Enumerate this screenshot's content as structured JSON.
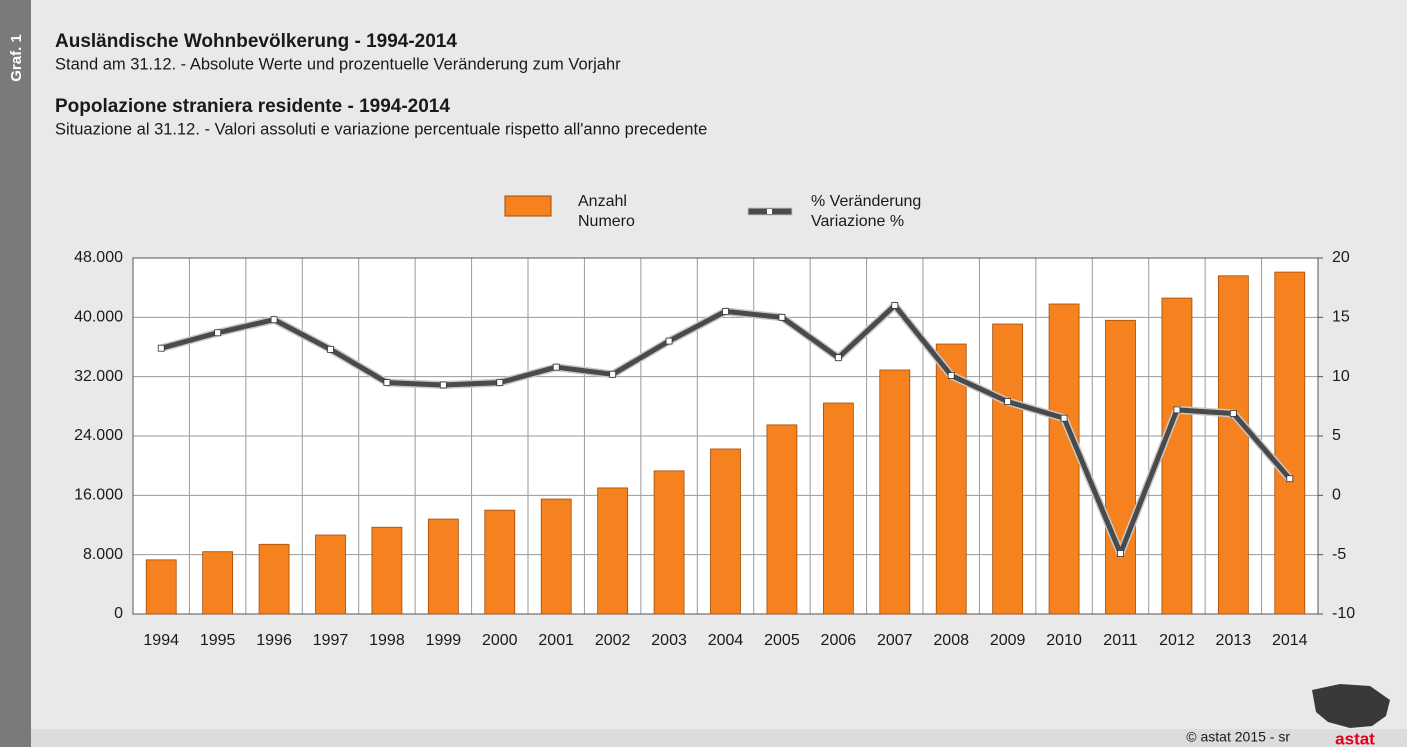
{
  "chart_data": {
    "type": "bar-line",
    "side_label": "Graf. 1",
    "title": "Ausländische Wohnbevölkerung - 1994-2014",
    "subtitle": "Stand am 31.12. - Absolute Werte und prozentuelle Veränderung zum Vorjahr",
    "title2": "Popolazione straniera residente - 1994-2014",
    "subtitle2": "Situazione al 31.12. - Valori assoluti e variazione percentuale rispetto all'anno precedente",
    "categories": [
      "1994",
      "1995",
      "1996",
      "1997",
      "1998",
      "1999",
      "2000",
      "2001",
      "2002",
      "2003",
      "2004",
      "2005",
      "2006",
      "2007",
      "2008",
      "2009",
      "2010",
      "2011",
      "2012",
      "2013",
      "2014"
    ],
    "series": [
      {
        "name": [
          "Anzahl",
          "Numero"
        ],
        "type": "bar",
        "color": "#f5821f",
        "values": [
          7300,
          8400,
          9400,
          10650,
          11700,
          12800,
          14000,
          15500,
          17000,
          19300,
          22250,
          25500,
          28450,
          32900,
          36400,
          39100,
          41800,
          39600,
          42600,
          45600,
          46100
        ]
      },
      {
        "name": [
          "% Veränderung",
          "Variazione %"
        ],
        "type": "line",
        "axis": "y2",
        "color": "#4a4a4a",
        "values": [
          12.4,
          13.7,
          14.8,
          12.3,
          9.5,
          9.3,
          9.5,
          10.8,
          10.2,
          13.0,
          15.5,
          15.0,
          11.6,
          16.0,
          10.1,
          7.9,
          6.5,
          -4.9,
          7.2,
          6.9,
          1.4
        ]
      }
    ],
    "ylim": [
      0,
      48000
    ],
    "yticks": [
      0,
      {
        "value": 8000,
        "label": "8.000"
      },
      {
        "value": 16000,
        "label": "16.000"
      },
      {
        "value": 24000,
        "label": "24.000"
      },
      {
        "value": 32000,
        "label": "32.000"
      },
      {
        "value": 40000,
        "label": "40.000"
      },
      {
        "value": 48000,
        "label": "48.000"
      }
    ],
    "y2lim": [
      -10,
      20
    ],
    "y2ticks": [
      -10,
      -5,
      0,
      5,
      10,
      15,
      20
    ],
    "grid": true,
    "legend": "top",
    "footer": "© astat 2015 - sr",
    "logo": "astat"
  }
}
